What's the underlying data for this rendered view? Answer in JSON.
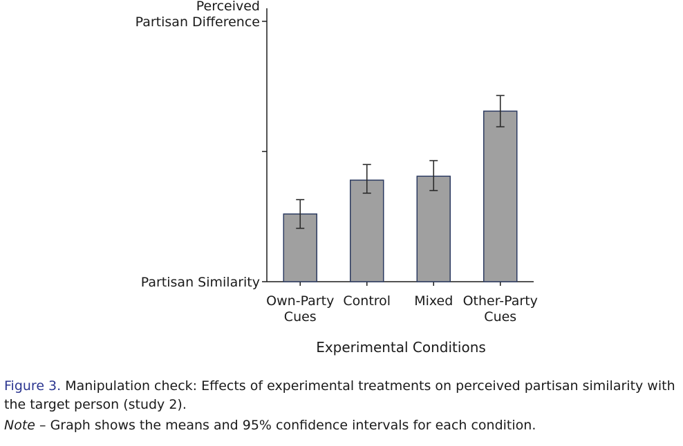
{
  "chart_data": {
    "type": "bar",
    "categories": [
      [
        "Own-Party",
        "Cues"
      ],
      [
        "Control"
      ],
      [
        "Mixed"
      ],
      [
        "Other-Party",
        "Cues"
      ]
    ],
    "values": [
      2.6,
      3.9,
      4.05,
      6.55
    ],
    "ci_low": [
      2.05,
      3.4,
      3.5,
      5.95
    ],
    "ci_high": [
      3.15,
      4.5,
      4.65,
      7.15
    ],
    "ylim": [
      0,
      10.5
    ],
    "yticks": [
      0,
      5,
      10
    ],
    "ytick_labels": [
      [
        "Partisan Similarity"
      ],
      [],
      [
        "Perceived",
        "Partisan Difference"
      ]
    ],
    "xlabel": "Experimental Conditions",
    "bar_color": "#a0a0a0",
    "bar_edge_color": "#2b3a60",
    "grid": false,
    "legend": "none"
  },
  "caption": {
    "figure_label": "Figure 3.",
    "text": " Manipulation check: Effects of experimental treatments on perceived partisan similarity with the target person (study 2).",
    "note_label": "Note",
    "note_text": " – Graph shows the means and 95% confidence intervals for each condition."
  }
}
